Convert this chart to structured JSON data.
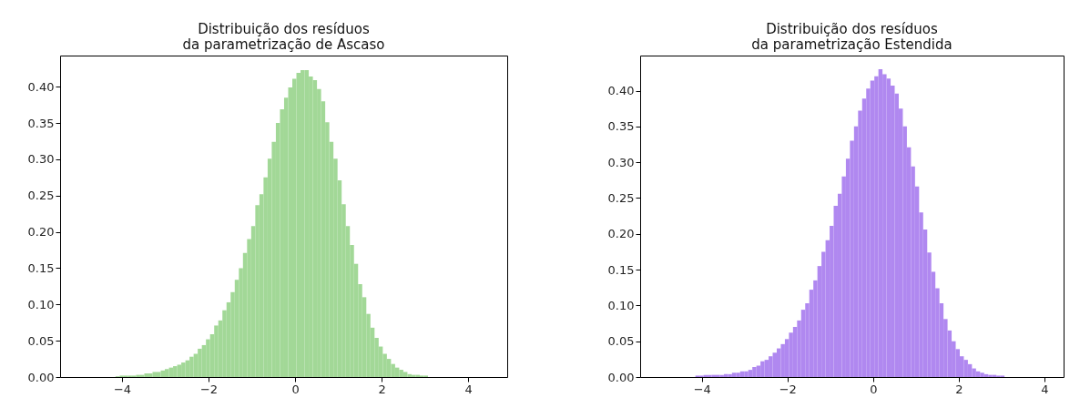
{
  "chart_data": [
    {
      "type": "histogram",
      "title": "Distribuição dos resíduos\nda parametrização de Ascaso",
      "color": "#a2d897",
      "bins": [
        -4.15,
        -4.055,
        -3.96,
        -3.865,
        -3.77,
        -3.675,
        -3.58,
        -3.485,
        -3.39,
        -3.295,
        -3.2,
        -3.105,
        -3.01,
        -2.915,
        -2.82,
        -2.725,
        -2.63,
        -2.535,
        -2.44,
        -2.345,
        -2.25,
        -2.155,
        -2.06,
        -1.965,
        -1.87,
        -1.775,
        -1.68,
        -1.585,
        -1.49,
        -1.395,
        -1.3,
        -1.205,
        -1.11,
        -1.015,
        -0.92,
        -0.825,
        -0.73,
        -0.635,
        -0.54,
        -0.445,
        -0.35,
        -0.255,
        -0.16,
        -0.065,
        0.03,
        0.125,
        0.22,
        0.315,
        0.41,
        0.505,
        0.6,
        0.695,
        0.79,
        0.885,
        0.98,
        1.075,
        1.17,
        1.265,
        1.36,
        1.455,
        1.55,
        1.645,
        1.74,
        1.835,
        1.93,
        2.025,
        2.12,
        2.215,
        2.31,
        2.405,
        2.5,
        2.595,
        2.69,
        2.785,
        2.88,
        2.975,
        3.07
      ],
      "values": [
        0.001,
        0.002,
        0.002,
        0.002,
        0.002,
        0.003,
        0.003,
        0.005,
        0.005,
        0.007,
        0.007,
        0.009,
        0.011,
        0.013,
        0.015,
        0.017,
        0.02,
        0.023,
        0.028,
        0.032,
        0.039,
        0.044,
        0.052,
        0.059,
        0.071,
        0.078,
        0.092,
        0.103,
        0.117,
        0.134,
        0.15,
        0.171,
        0.19,
        0.208,
        0.237,
        0.252,
        0.275,
        0.301,
        0.324,
        0.35,
        0.369,
        0.385,
        0.399,
        0.411,
        0.419,
        0.423,
        0.423,
        0.414,
        0.409,
        0.397,
        0.38,
        0.351,
        0.324,
        0.301,
        0.271,
        0.238,
        0.208,
        0.182,
        0.156,
        0.128,
        0.11,
        0.087,
        0.068,
        0.054,
        0.042,
        0.032,
        0.025,
        0.018,
        0.013,
        0.01,
        0.007,
        0.004,
        0.003,
        0.003,
        0.002,
        0.002
      ],
      "xlim": [
        -5.43,
        4.9
      ],
      "ylim": [
        0,
        0.443
      ],
      "xticks": [
        -4,
        -2,
        0,
        2,
        4
      ],
      "yticks": [
        {
          "value": 0,
          "label": "0.00"
        },
        {
          "value": 0.05,
          "label": "0.05"
        },
        {
          "value": 0.1,
          "label": "0.10"
        },
        {
          "value": 0.15,
          "label": "0.15"
        },
        {
          "value": 0.2,
          "label": "0.20"
        },
        {
          "value": 0.25,
          "label": "0.25"
        },
        {
          "value": 0.3,
          "label": "0.30"
        },
        {
          "value": 0.35,
          "label": "0.35"
        },
        {
          "value": 0.4,
          "label": "0.40"
        }
      ],
      "grid": false
    },
    {
      "type": "histogram",
      "title": "Distribuição dos resíduos\nda parametrização Estendida",
      "color": "#b088f0",
      "bins": [
        -4.15,
        -4.055,
        -3.96,
        -3.865,
        -3.77,
        -3.675,
        -3.58,
        -3.485,
        -3.39,
        -3.295,
        -3.2,
        -3.105,
        -3.01,
        -2.915,
        -2.82,
        -2.725,
        -2.63,
        -2.535,
        -2.44,
        -2.345,
        -2.25,
        -2.155,
        -2.06,
        -1.965,
        -1.87,
        -1.775,
        -1.68,
        -1.585,
        -1.49,
        -1.395,
        -1.3,
        -1.205,
        -1.11,
        -1.015,
        -0.92,
        -0.825,
        -0.73,
        -0.635,
        -0.54,
        -0.445,
        -0.35,
        -0.255,
        -0.16,
        -0.065,
        0.03,
        0.125,
        0.22,
        0.315,
        0.41,
        0.505,
        0.6,
        0.695,
        0.79,
        0.885,
        0.98,
        1.075,
        1.17,
        1.265,
        1.36,
        1.455,
        1.55,
        1.645,
        1.74,
        1.835,
        1.93,
        2.025,
        2.12,
        2.215,
        2.31,
        2.405,
        2.5,
        2.595,
        2.69,
        2.785,
        2.88,
        2.975,
        3.07
      ],
      "values": [
        0.002,
        0.002,
        0.003,
        0.003,
        0.003,
        0.003,
        0.003,
        0.004,
        0.004,
        0.006,
        0.006,
        0.008,
        0.008,
        0.01,
        0.014,
        0.016,
        0.022,
        0.024,
        0.029,
        0.034,
        0.04,
        0.046,
        0.053,
        0.062,
        0.07,
        0.079,
        0.094,
        0.103,
        0.122,
        0.135,
        0.155,
        0.175,
        0.191,
        0.211,
        0.239,
        0.256,
        0.28,
        0.305,
        0.33,
        0.35,
        0.372,
        0.389,
        0.403,
        0.414,
        0.42,
        0.43,
        0.423,
        0.417,
        0.407,
        0.396,
        0.375,
        0.35,
        0.321,
        0.294,
        0.266,
        0.23,
        0.206,
        0.174,
        0.147,
        0.124,
        0.103,
        0.081,
        0.065,
        0.05,
        0.039,
        0.029,
        0.024,
        0.018,
        0.012,
        0.008,
        0.006,
        0.004,
        0.003,
        0.003,
        0.002,
        0.002
      ],
      "xlim": [
        -5.44,
        4.45
      ],
      "ylim": [
        0,
        0.449
      ],
      "xticks": [
        -4,
        -2,
        0,
        2,
        4
      ],
      "yticks": [
        {
          "value": 0,
          "label": "0.00"
        },
        {
          "value": 0.05,
          "label": "0.05"
        },
        {
          "value": 0.1,
          "label": "0.10"
        },
        {
          "value": 0.15,
          "label": "0.15"
        },
        {
          "value": 0.2,
          "label": "0.20"
        },
        {
          "value": 0.25,
          "label": "0.25"
        },
        {
          "value": 0.3,
          "label": "0.30"
        },
        {
          "value": 0.35,
          "label": "0.35"
        },
        {
          "value": 0.4,
          "label": "0.40"
        }
      ],
      "grid": false
    }
  ]
}
